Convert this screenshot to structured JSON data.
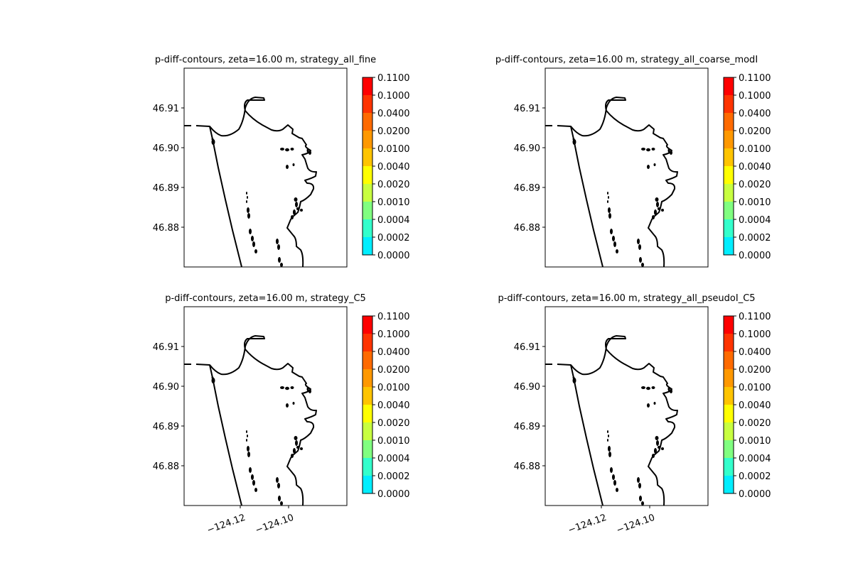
{
  "chart_data": [
    {
      "type": "contour-map",
      "title": "p-diff-contours, zeta=16.00 m, strategy_all_fine",
      "y_ticks": [
        "46.91",
        "46.90",
        "46.89",
        "46.88"
      ],
      "x_ticks": [],
      "y_values": [
        46.91,
        46.9,
        46.89,
        46.88
      ],
      "colorbar": {
        "levels": [
          "0.1100",
          "0.1000",
          "0.0400",
          "0.0200",
          "0.0100",
          "0.0040",
          "0.0020",
          "0.0010",
          "0.0004",
          "0.0002",
          "0.0000"
        ],
        "colors": [
          "#ff0000",
          "#ff3300",
          "#ff6a00",
          "#ff9800",
          "#ffc400",
          "#ffff00",
          "#c8ff40",
          "#80ff80",
          "#33ffcc",
          "#00eeff",
          "#ffffff"
        ]
      }
    },
    {
      "type": "contour-map",
      "title": "p-diff-contours, zeta=16.00 m, strategy_all_coarse_modI",
      "y_ticks": [
        "46.91",
        "46.90",
        "46.89",
        "46.88"
      ],
      "x_ticks": [],
      "y_values": [
        46.91,
        46.9,
        46.89,
        46.88
      ],
      "colorbar": {
        "levels": [
          "0.1100",
          "0.1000",
          "0.0400",
          "0.0200",
          "0.0100",
          "0.0040",
          "0.0020",
          "0.0010",
          "0.0004",
          "0.0002",
          "0.0000"
        ],
        "colors": [
          "#ff0000",
          "#ff3300",
          "#ff6a00",
          "#ff9800",
          "#ffc400",
          "#ffff00",
          "#c8ff40",
          "#80ff80",
          "#33ffcc",
          "#00eeff",
          "#ffffff"
        ]
      }
    },
    {
      "type": "contour-map",
      "title": "p-diff-contours, zeta=16.00 m, strategy_C5",
      "y_ticks": [
        "46.91",
        "46.90",
        "46.89",
        "46.88"
      ],
      "x_ticks": [
        "−124.12",
        "−124.10"
      ],
      "y_values": [
        46.91,
        46.9,
        46.89,
        46.88
      ],
      "colorbar": {
        "levels": [
          "0.1100",
          "0.1000",
          "0.0400",
          "0.0200",
          "0.0100",
          "0.0040",
          "0.0020",
          "0.0010",
          "0.0004",
          "0.0002",
          "0.0000"
        ],
        "colors": [
          "#ff0000",
          "#ff3300",
          "#ff6a00",
          "#ff9800",
          "#ffc400",
          "#ffff00",
          "#c8ff40",
          "#80ff80",
          "#33ffcc",
          "#00eeff",
          "#ffffff"
        ]
      }
    },
    {
      "type": "contour-map",
      "title": "p-diff-contours, zeta=16.00 m, strategy_all_pseudoI_C5",
      "y_ticks": [
        "46.91",
        "46.90",
        "46.89",
        "46.88"
      ],
      "x_ticks": [
        "−124.12",
        "−124.10"
      ],
      "y_values": [
        46.91,
        46.9,
        46.89,
        46.88
      ],
      "colorbar": {
        "levels": [
          "0.1100",
          "0.1000",
          "0.0400",
          "0.0200",
          "0.0100",
          "0.0040",
          "0.0020",
          "0.0010",
          "0.0004",
          "0.0002",
          "0.0000"
        ],
        "colors": [
          "#ff0000",
          "#ff3300",
          "#ff6a00",
          "#ff9800",
          "#ffc400",
          "#ffff00",
          "#c8ff40",
          "#80ff80",
          "#33ffcc",
          "#00eeff",
          "#ffffff"
        ]
      }
    }
  ]
}
